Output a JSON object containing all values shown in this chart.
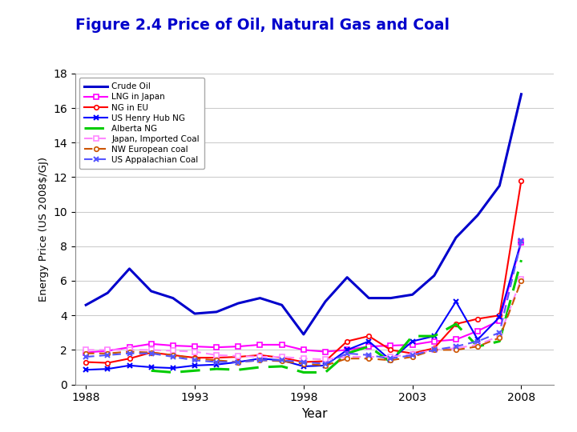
{
  "title": "Figure 2.4 Price of Oil, Natural Gas and Coal",
  "title_color": "#0000CC",
  "xlabel": "Year",
  "ylabel": "Energy Price (US 2008$/GJ)",
  "xlim": [
    1987.5,
    2009.5
  ],
  "ylim": [
    0,
    18
  ],
  "yticks": [
    0,
    2,
    4,
    6,
    8,
    10,
    12,
    14,
    16,
    18
  ],
  "xtick_labels": [
    "1988",
    "1993",
    "1998",
    "2003",
    "2008"
  ],
  "xtick_positions": [
    1988,
    1993,
    1998,
    2003,
    2008
  ],
  "background_color": "#ffffff",
  "series": [
    {
      "label": "Crude Oil",
      "color": "#0000CC",
      "linestyle": "-",
      "marker": null,
      "dashes": null,
      "linewidth": 2.2,
      "years": [
        1988,
        1989,
        1990,
        1991,
        1992,
        1993,
        1994,
        1995,
        1996,
        1997,
        1998,
        1999,
        2000,
        2001,
        2002,
        2003,
        2004,
        2005,
        2006,
        2007,
        2008
      ],
      "values": [
        4.6,
        5.3,
        6.7,
        5.4,
        5.0,
        4.1,
        4.2,
        4.7,
        5.0,
        4.6,
        2.9,
        4.8,
        6.2,
        5.0,
        5.0,
        5.2,
        6.3,
        8.5,
        9.8,
        11.5,
        16.8
      ]
    },
    {
      "label": "LNG in Japan",
      "color": "#FF00FF",
      "linestyle": "-",
      "marker": "s",
      "markersize": 4,
      "dashes": null,
      "linewidth": 1.5,
      "years": [
        1988,
        1989,
        1990,
        1991,
        1992,
        1993,
        1994,
        1995,
        1996,
        1997,
        1998,
        1999,
        2000,
        2001,
        2002,
        2003,
        2004,
        2005,
        2006,
        2007,
        2008
      ],
      "values": [
        1.85,
        1.95,
        2.15,
        2.35,
        2.25,
        2.2,
        2.15,
        2.2,
        2.3,
        2.3,
        2.0,
        1.9,
        2.0,
        2.2,
        2.25,
        2.3,
        2.5,
        2.6,
        3.1,
        3.7,
        8.2
      ]
    },
    {
      "label": "NG in EU",
      "color": "#FF0000",
      "linestyle": "-",
      "marker": "o",
      "markersize": 4,
      "dashes": null,
      "linewidth": 1.5,
      "years": [
        1988,
        1989,
        1990,
        1991,
        1992,
        1993,
        1994,
        1995,
        1996,
        1997,
        1998,
        1999,
        2000,
        2001,
        2002,
        2003,
        2004,
        2005,
        2006,
        2007,
        2008
      ],
      "values": [
        1.3,
        1.25,
        1.5,
        1.85,
        1.7,
        1.55,
        1.55,
        1.6,
        1.7,
        1.55,
        1.3,
        1.35,
        2.5,
        2.8,
        2.0,
        1.8,
        2.1,
        3.5,
        3.8,
        4.0,
        11.8
      ]
    },
    {
      "label": "US Henry Hub NG",
      "color": "#0000FF",
      "linestyle": "-",
      "marker": "x",
      "markersize": 5,
      "dashes": null,
      "linewidth": 1.5,
      "years": [
        1988,
        1989,
        1990,
        1991,
        1992,
        1993,
        1994,
        1995,
        1996,
        1997,
        1998,
        1999,
        2000,
        2001,
        2002,
        2003,
        2004,
        2005,
        2006,
        2007,
        2008
      ],
      "values": [
        0.85,
        0.9,
        1.1,
        1.0,
        0.95,
        1.1,
        1.15,
        1.3,
        1.5,
        1.4,
        1.05,
        1.1,
        2.0,
        2.5,
        1.4,
        2.5,
        2.8,
        4.8,
        2.6,
        3.9,
        8.3
      ]
    },
    {
      "label": "Alberta NG",
      "color": "#00CC00",
      "linestyle": "--",
      "marker": null,
      "dashes": [
        8,
        4
      ],
      "linewidth": 2.2,
      "years": [
        1991,
        1992,
        1993,
        1994,
        1995,
        1996,
        1997,
        1998,
        1999,
        2000,
        2001,
        2002,
        2003,
        2004,
        2005,
        2006,
        2007,
        2008
      ],
      "values": [
        0.8,
        0.7,
        0.8,
        0.9,
        0.85,
        1.0,
        1.05,
        0.7,
        0.7,
        1.8,
        2.2,
        1.3,
        2.8,
        2.8,
        3.5,
        2.2,
        2.5,
        7.2
      ]
    },
    {
      "label": "Japan, Imported Coal",
      "color": "#FF88FF",
      "linestyle": "--",
      "marker": "s",
      "markersize": 4,
      "dashes": [
        5,
        3
      ],
      "linewidth": 1.5,
      "years": [
        1988,
        1989,
        1990,
        1991,
        1992,
        1993,
        1994,
        1995,
        1996,
        1997,
        1998,
        1999,
        2000,
        2001,
        2002,
        2003,
        2004,
        2005,
        2006,
        2007,
        2008
      ],
      "values": [
        2.0,
        2.0,
        2.0,
        2.0,
        1.95,
        1.9,
        1.7,
        1.65,
        1.6,
        1.6,
        1.5,
        1.45,
        1.6,
        1.6,
        1.6,
        1.75,
        2.0,
        2.1,
        2.3,
        2.8,
        6.1
      ]
    },
    {
      "label": "NW European coal",
      "color": "#CC5500",
      "linestyle": "--",
      "marker": "o",
      "markersize": 4,
      "dashes": [
        5,
        3
      ],
      "linewidth": 1.5,
      "years": [
        1988,
        1989,
        1990,
        1991,
        1992,
        1993,
        1994,
        1995,
        1996,
        1997,
        1998,
        1999,
        2000,
        2001,
        2002,
        2003,
        2004,
        2005,
        2006,
        2007,
        2008
      ],
      "values": [
        1.8,
        1.8,
        1.9,
        1.85,
        1.7,
        1.5,
        1.4,
        1.3,
        1.4,
        1.35,
        1.2,
        1.1,
        1.5,
        1.5,
        1.4,
        1.6,
        2.0,
        2.0,
        2.2,
        2.7,
        6.0
      ]
    },
    {
      "label": "US Appalachian Coal",
      "color": "#5555FF",
      "linestyle": "--",
      "marker": "x",
      "markersize": 5,
      "dashes": [
        5,
        3
      ],
      "linewidth": 1.5,
      "years": [
        1988,
        1989,
        1990,
        1991,
        1992,
        1993,
        1994,
        1995,
        1996,
        1997,
        1998,
        1999,
        2000,
        2001,
        2002,
        2003,
        2004,
        2005,
        2006,
        2007,
        2008
      ],
      "values": [
        1.6,
        1.7,
        1.8,
        1.8,
        1.6,
        1.4,
        1.3,
        1.3,
        1.4,
        1.4,
        1.3,
        1.2,
        1.8,
        1.7,
        1.5,
        1.7,
        2.0,
        2.2,
        2.5,
        3.0,
        8.3
      ]
    }
  ]
}
